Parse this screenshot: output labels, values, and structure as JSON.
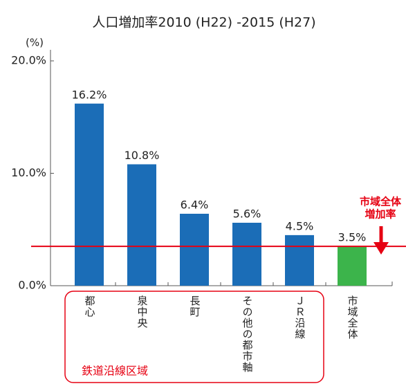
{
  "chart_data": {
    "type": "bar",
    "title": "人口増加率2010 (H22) -2015 (H27)",
    "y_unit": "(%)",
    "categories": [
      "都心",
      "泉中央",
      "長町",
      "その他の都市軸",
      "ＪＲ沿線",
      "市域全体"
    ],
    "values": [
      16.2,
      10.8,
      6.4,
      5.6,
      4.5,
      3.5
    ],
    "value_labels": [
      "16.2%",
      "10.8%",
      "6.4%",
      "5.6%",
      "4.5%",
      "3.5%"
    ],
    "colors": [
      "#1b6db7",
      "#1b6db7",
      "#1b6db7",
      "#1b6db7",
      "#1b6db7",
      "#3cb44b"
    ],
    "ylim": [
      0,
      20
    ],
    "yticks": [
      {
        "value": 0,
        "label": "0.0%"
      },
      {
        "value": 10,
        "label": "10.0%"
      },
      {
        "value": 20,
        "label": "20.0%"
      }
    ],
    "reference_line": {
      "value": 3.5,
      "color": "#e60012",
      "label": [
        "市域全体",
        "増加率"
      ]
    },
    "group": {
      "label": "鉄道沿線区域",
      "from": 0,
      "to": 4,
      "color": "#e60012"
    }
  }
}
